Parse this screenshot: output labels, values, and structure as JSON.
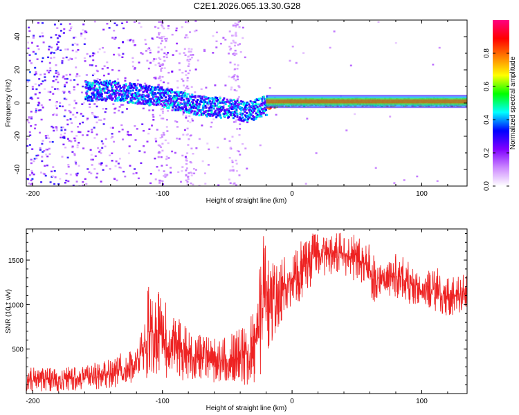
{
  "title": "C2E1.2026.065.13.30.G28",
  "chart_data": [
    {
      "type": "heatmap",
      "title": "C2E1.2026.065.13.30.G28",
      "xlabel": "Height of straight line (km)",
      "ylabel": "Frequency (Hz)",
      "xlim": [
        -205,
        135
      ],
      "ylim": [
        -50,
        50
      ],
      "xticks": [
        -200,
        -100,
        0,
        100
      ],
      "xtick_labels": [
        "-200",
        "-100",
        "0",
        "100"
      ],
      "yticks": [
        -40,
        -20,
        0,
        20,
        40
      ],
      "ytick_labels": [
        "-40",
        "-20",
        "0",
        "20",
        "40"
      ],
      "ridge": {
        "x": [
          -160,
          -140,
          -120,
          -100,
          -80,
          -60,
          -45,
          -35,
          -25,
          -15,
          0,
          20,
          40,
          60,
          80,
          100,
          135
        ],
        "frequency": [
          8,
          8,
          6,
          4,
          0,
          -2,
          -3,
          -5,
          -2,
          0,
          1,
          1,
          1,
          1,
          1,
          1,
          1
        ]
      },
      "colorbar": {
        "label": "Normalized spectral amplitude",
        "min": 0.0,
        "max": 1.0,
        "ticks": [
          0.0,
          0.2,
          0.4,
          0.6,
          0.8
        ],
        "tick_labels": [
          "0.0",
          "0.2",
          "0.4",
          "0.6",
          "0.8"
        ],
        "colors": [
          "#ffffff",
          "#cc88ff",
          "#8000ff",
          "#0000ff",
          "#00ffff",
          "#00ff00",
          "#ffff00",
          "#ff8000",
          "#ff0000",
          "#ff0080"
        ]
      }
    },
    {
      "type": "line",
      "xlabel": "Height of straight line (km)",
      "ylabel": "SNR (10 * v/v)",
      "xlim": [
        -205,
        135
      ],
      "ylim": [
        0,
        1850
      ],
      "xticks": [
        -200,
        -100,
        0,
        100
      ],
      "xtick_labels": [
        "-200",
        "-100",
        "0",
        "100"
      ],
      "yticks": [
        500,
        1000,
        1500
      ],
      "ytick_labels": [
        "500",
        "1000",
        "1500"
      ],
      "color": "#ee2222",
      "series": [
        {
          "name": "SNR",
          "x": [
            -205,
            -180,
            -160,
            -140,
            -120,
            -110,
            -100,
            -90,
            -80,
            -70,
            -60,
            -50,
            -40,
            -30,
            -22,
            -15,
            -5,
            5,
            20,
            35,
            50,
            60,
            62,
            70,
            80,
            90,
            100,
            110,
            120,
            135
          ],
          "upper": [
            290,
            300,
            310,
            400,
            560,
            1250,
            1120,
            900,
            720,
            660,
            620,
            640,
            750,
            900,
            1850,
            1500,
            1550,
            1700,
            1850,
            1830,
            1800,
            1700,
            1600,
            1400,
            1600,
            1500,
            1300,
            1450,
            1300,
            1350
          ],
          "lower": [
            10,
            20,
            40,
            60,
            110,
            140,
            150,
            140,
            150,
            130,
            110,
            140,
            90,
            80,
            200,
            600,
            900,
            1000,
            1300,
            1350,
            1250,
            1100,
            1000,
            1150,
            1050,
            1000,
            1000,
            900,
            850,
            900
          ]
        }
      ]
    }
  ]
}
